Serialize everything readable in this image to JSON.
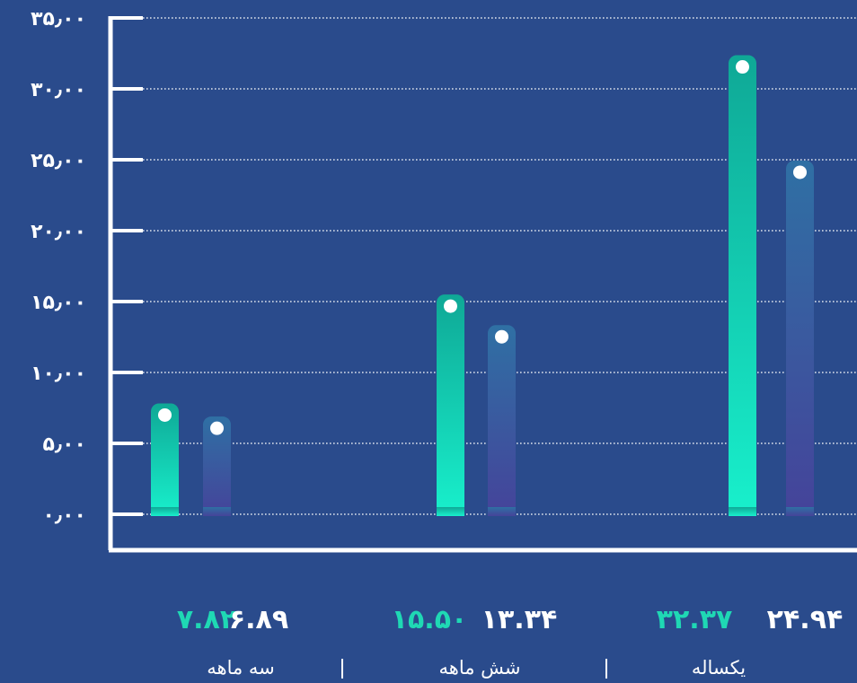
{
  "chart_data": {
    "type": "bar",
    "categories": [
      "سه ماهه",
      "شش ماهه",
      "یکساله"
    ],
    "series": [
      {
        "values": [
          7.82,
          15.5,
          32.37
        ],
        "color": "#16c9a8"
      },
      {
        "values": [
          6.89,
          13.34,
          24.94
        ],
        "color": "#4a4aa3"
      }
    ],
    "value_labels": [
      [
        "۷.۸۲",
        "۱۵.۵۰",
        "۳۲.۳۷"
      ],
      [
        "۶.۸۹",
        "۱۳.۳۴",
        "۲۴.۹۴"
      ]
    ],
    "yticks": [
      0,
      5,
      10,
      15,
      20,
      25,
      30,
      35
    ],
    "ytick_labels": [
      "۰٫۰۰",
      "۵٫۰۰",
      "۱۰٫۰۰",
      "۱۵٫۰۰",
      "۲۰٫۰۰",
      "۲۵٫۰۰",
      "۳۰٫۰۰",
      "۳۵٫۰۰"
    ],
    "ylim": [
      0,
      35
    ],
    "grid": true,
    "title": "",
    "xlabel": "",
    "ylabel": ""
  },
  "colors": {
    "background": "#2a4b8c",
    "series_a_top": "#0fa896",
    "series_a_bottom": "#18f0cc",
    "series_b_top": "#2f70a4",
    "series_b_bottom": "#45439a",
    "value_label_a": "#1fd8b4",
    "value_label_b": "#ffffff",
    "axis": "#ffffff"
  }
}
